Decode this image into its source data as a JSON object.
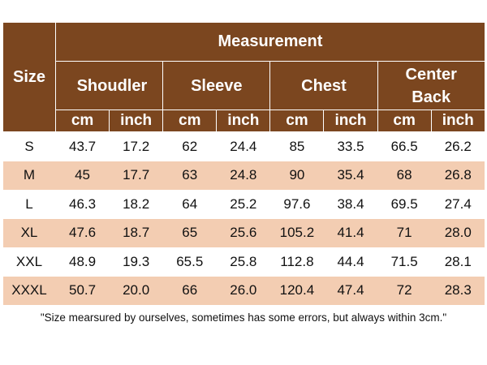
{
  "header": {
    "size": "Size",
    "measurement": "Measurement",
    "groups": [
      "Shoudler",
      "Sleeve",
      "Chest",
      "Center Back"
    ],
    "units": [
      "cm",
      "inch",
      "cm",
      "inch",
      "cm",
      "inch",
      "cm",
      "inch"
    ]
  },
  "rows": [
    [
      "S",
      "43.7",
      "17.2",
      "62",
      "24.4",
      "85",
      "33.5",
      "66.5",
      "26.2"
    ],
    [
      "M",
      "45",
      "17.7",
      "63",
      "24.8",
      "90",
      "35.4",
      "68",
      "26.8"
    ],
    [
      "L",
      "46.3",
      "18.2",
      "64",
      "25.2",
      "97.6",
      "38.4",
      "69.5",
      "27.4"
    ],
    [
      "XL",
      "47.6",
      "18.7",
      "65",
      "25.6",
      "105.2",
      "41.4",
      "71",
      "28.0"
    ],
    [
      "XXL",
      "48.9",
      "19.3",
      "65.5",
      "25.8",
      "112.8",
      "44.4",
      "71.5",
      "28.1"
    ],
    [
      "XXXL",
      "50.7",
      "20.0",
      "66",
      "26.0",
      "120.4",
      "47.4",
      "72",
      "28.3"
    ]
  ],
  "note": "\"Size mearsured by ourselves, sometimes has some errors, but always within 3cm.\""
}
